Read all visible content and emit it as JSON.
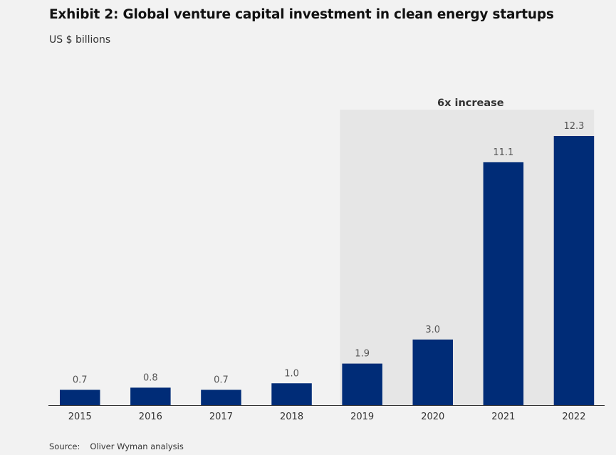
{
  "chart_data": {
    "type": "bar",
    "title": "Exhibit 2: Global venture capital investment in clean energy startups",
    "subtitle": "US $ billions",
    "xlabel": "",
    "ylabel": "US $ billions",
    "categories": [
      "2015",
      "2016",
      "2017",
      "2018",
      "2019",
      "2020",
      "2021",
      "2022"
    ],
    "values": [
      0.7,
      0.8,
      0.7,
      1.0,
      1.9,
      3.0,
      11.1,
      12.3
    ],
    "value_labels": [
      "0.7",
      "0.8",
      "0.7",
      "1.0",
      "1.9",
      "3.0",
      "11.1",
      "12.3"
    ],
    "ylim": [
      0,
      12.3
    ],
    "grid": false,
    "bar_color": "#002c77",
    "highlight": {
      "label": "6x increase",
      "from_category": "2019",
      "to_category": "2022",
      "color": "#e6e6e6"
    },
    "source_label": "Source:",
    "source_text": "Oliver Wyman analysis"
  }
}
